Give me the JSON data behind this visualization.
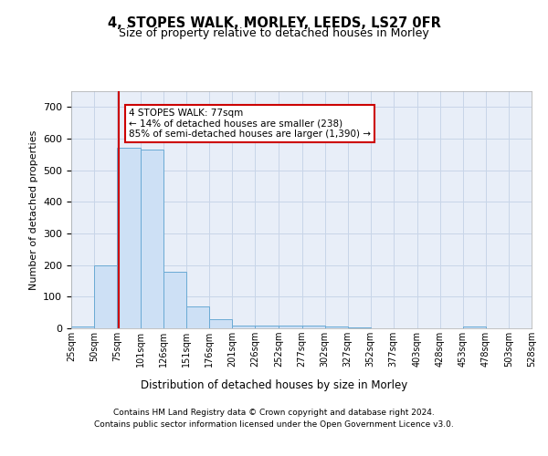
{
  "title": "4, STOPES WALK, MORLEY, LEEDS, LS27 0FR",
  "subtitle": "Size of property relative to detached houses in Morley",
  "xlabel": "Distribution of detached houses by size in Morley",
  "ylabel": "Number of detached properties",
  "footer_line1": "Contains HM Land Registry data © Crown copyright and database right 2024.",
  "footer_line2": "Contains public sector information licensed under the Open Government Licence v3.0.",
  "bar_color": "#cde0f5",
  "bar_edge_color": "#6aaad4",
  "grid_color": "#c8d5e8",
  "background_color": "#e8eef8",
  "red_line_x": 77,
  "annotation_text": "4 STOPES WALK: 77sqm\n← 14% of detached houses are smaller (238)\n85% of semi-detached houses are larger (1,390) →",
  "annotation_box_color": "#ffffff",
  "annotation_border_color": "#cc0000",
  "bin_edges": [
    25,
    50,
    75,
    101,
    126,
    151,
    176,
    201,
    226,
    252,
    277,
    302,
    327,
    352,
    377,
    403,
    428,
    453,
    478,
    503,
    528
  ],
  "bin_labels": [
    "25sqm",
    "50sqm",
    "75sqm",
    "101sqm",
    "126sqm",
    "151sqm",
    "176sqm",
    "201sqm",
    "226sqm",
    "252sqm",
    "277sqm",
    "302sqm",
    "327sqm",
    "352sqm",
    "377sqm",
    "403sqm",
    "428sqm",
    "453sqm",
    "478sqm",
    "503sqm",
    "528sqm"
  ],
  "counts": [
    5,
    200,
    570,
    565,
    180,
    70,
    30,
    10,
    8,
    8,
    10,
    5,
    3,
    0,
    0,
    0,
    0,
    5,
    0,
    0
  ],
  "ylim": [
    0,
    750
  ],
  "yticks": [
    0,
    100,
    200,
    300,
    400,
    500,
    600,
    700
  ]
}
